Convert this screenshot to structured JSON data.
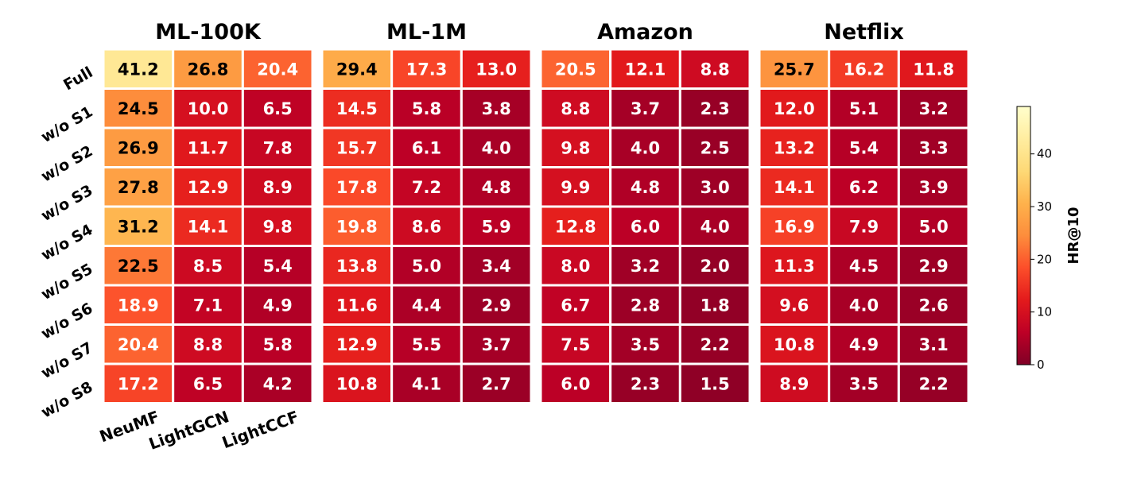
{
  "chart_data": {
    "type": "heatmap",
    "panels": [
      {
        "title": "ML-100K",
        "values": [
          [
            41.2,
            26.8,
            20.4
          ],
          [
            24.5,
            10.0,
            6.5
          ],
          [
            26.9,
            11.7,
            7.8
          ],
          [
            27.8,
            12.9,
            8.9
          ],
          [
            31.2,
            14.1,
            9.8
          ],
          [
            22.5,
            8.5,
            5.4
          ],
          [
            18.9,
            7.1,
            4.9
          ],
          [
            20.4,
            8.8,
            5.8
          ],
          [
            17.2,
            6.5,
            4.2
          ]
        ]
      },
      {
        "title": "ML-1M",
        "values": [
          [
            29.4,
            17.3,
            13.0
          ],
          [
            14.5,
            5.8,
            3.8
          ],
          [
            15.7,
            6.1,
            4.0
          ],
          [
            17.8,
            7.2,
            4.8
          ],
          [
            19.8,
            8.6,
            5.9
          ],
          [
            13.8,
            5.0,
            3.4
          ],
          [
            11.6,
            4.4,
            2.9
          ],
          [
            12.9,
            5.5,
            3.7
          ],
          [
            10.8,
            4.1,
            2.7
          ]
        ]
      },
      {
        "title": "Amazon",
        "values": [
          [
            20.5,
            12.1,
            8.8
          ],
          [
            8.8,
            3.7,
            2.3
          ],
          [
            9.8,
            4.0,
            2.5
          ],
          [
            9.9,
            4.8,
            3.0
          ],
          [
            12.8,
            6.0,
            4.0
          ],
          [
            8.0,
            3.2,
            2.0
          ],
          [
            6.7,
            2.8,
            1.8
          ],
          [
            7.5,
            3.5,
            2.2
          ],
          [
            6.0,
            2.3,
            1.5
          ]
        ]
      },
      {
        "title": "Netflix",
        "values": [
          [
            25.7,
            16.2,
            11.8
          ],
          [
            12.0,
            5.1,
            3.2
          ],
          [
            13.2,
            5.4,
            3.3
          ],
          [
            14.1,
            6.2,
            3.9
          ],
          [
            16.9,
            7.9,
            5.0
          ],
          [
            11.3,
            4.5,
            2.9
          ],
          [
            9.6,
            4.0,
            2.6
          ],
          [
            10.8,
            4.9,
            3.1
          ],
          [
            8.9,
            3.5,
            2.2
          ]
        ]
      }
    ],
    "rows": [
      "Full",
      "w/o S1",
      "w/o S2",
      "w/o S3",
      "w/o S4",
      "w/o S5",
      "w/o S6",
      "w/o S7",
      "w/o S8"
    ],
    "columns": [
      "NeuMF",
      "LightGCN",
      "LightCCF"
    ],
    "colorbar": {
      "label": "HR@10",
      "range": [
        0,
        49
      ],
      "ticks": [
        0,
        10,
        20,
        30,
        40
      ],
      "colormap": "YlOrRd_reversed"
    }
  }
}
